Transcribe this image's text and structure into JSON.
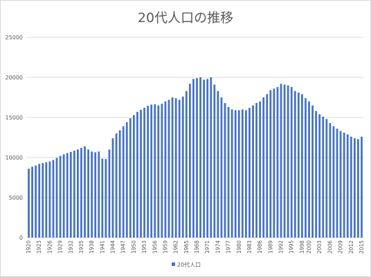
{
  "chart_data": {
    "type": "bar",
    "title": "20代人口の推移",
    "xlabel": "",
    "ylabel": "",
    "ylim": [
      0,
      25000
    ],
    "yticks": [
      0,
      5000,
      10000,
      15000,
      20000,
      25000
    ],
    "grid": true,
    "legend_position": "bottom",
    "colors": {
      "bar": "#4472c4",
      "grid": "#d9d9d9",
      "text": "#595959"
    },
    "categories": [
      "1920",
      "1921",
      "1922",
      "1923",
      "1924",
      "1925",
      "1926",
      "1927",
      "1928",
      "1929",
      "1930",
      "1931",
      "1932",
      "1933",
      "1934",
      "1935",
      "1936",
      "1937",
      "1938",
      "1939",
      "1940",
      "1941",
      "1942",
      "1943",
      "1944",
      "1945",
      "1946",
      "1947",
      "1948",
      "1949",
      "1950",
      "1951",
      "1952",
      "1953",
      "1954",
      "1955",
      "1956",
      "1957",
      "1958",
      "1959",
      "1960",
      "1961",
      "1962",
      "1963",
      "1964",
      "1965",
      "1966",
      "1967",
      "1968",
      "1969",
      "1970",
      "1971",
      "1972",
      "1973",
      "1974",
      "1975",
      "1976",
      "1977",
      "1978",
      "1979",
      "1980",
      "1981",
      "1982",
      "1983",
      "1984",
      "1985",
      "1986",
      "1987",
      "1988",
      "1989",
      "1990",
      "1991",
      "1992",
      "1993",
      "1994",
      "1995",
      "1996",
      "1997",
      "1998",
      "1999",
      "2000",
      "2001",
      "2002",
      "2003",
      "2004",
      "2005",
      "2006",
      "2007",
      "2008",
      "2009",
      "2010",
      "2011",
      "2012",
      "2013",
      "2014",
      "2015"
    ],
    "x_tick_labels": [
      "1920",
      "1923",
      "1926",
      "1929",
      "1932",
      "1935",
      "1938",
      "1941",
      "1944",
      "1947",
      "1950",
      "1953",
      "1956",
      "1959",
      "1962",
      "1965",
      "1968",
      "1971",
      "1974",
      "1977",
      "1980",
      "1983",
      "1986",
      "1989",
      "1992",
      "1995",
      "1998",
      "2000",
      "2003",
      "2006",
      "2009",
      "2012",
      "2015"
    ],
    "series": [
      {
        "name": "20代人口",
        "values": [
          8600,
          8850,
          9000,
          9200,
          9300,
          9400,
          9500,
          9700,
          9950,
          10200,
          10400,
          10550,
          10700,
          10850,
          11000,
          11200,
          11400,
          11000,
          10750,
          10650,
          10750,
          9850,
          9800,
          11000,
          12400,
          13000,
          13400,
          13900,
          14400,
          14900,
          15300,
          15700,
          15950,
          16200,
          16450,
          16600,
          16650,
          16500,
          16700,
          17000,
          17200,
          17500,
          17400,
          17200,
          17600,
          18300,
          19200,
          19800,
          19900,
          20000,
          19700,
          19800,
          20000,
          19100,
          18300,
          17500,
          16800,
          16300,
          16000,
          15900,
          15900,
          16000,
          15900,
          16200,
          16500,
          16800,
          17000,
          17500,
          17900,
          18400,
          18600,
          18800,
          19200,
          19100,
          19000,
          18800,
          18300,
          18100,
          17900,
          17400,
          17000,
          16500,
          15800,
          15400,
          15100,
          14800,
          14300,
          13900,
          13600,
          13300,
          13100,
          12900,
          12600,
          12400,
          12300,
          12600
        ]
      }
    ]
  }
}
